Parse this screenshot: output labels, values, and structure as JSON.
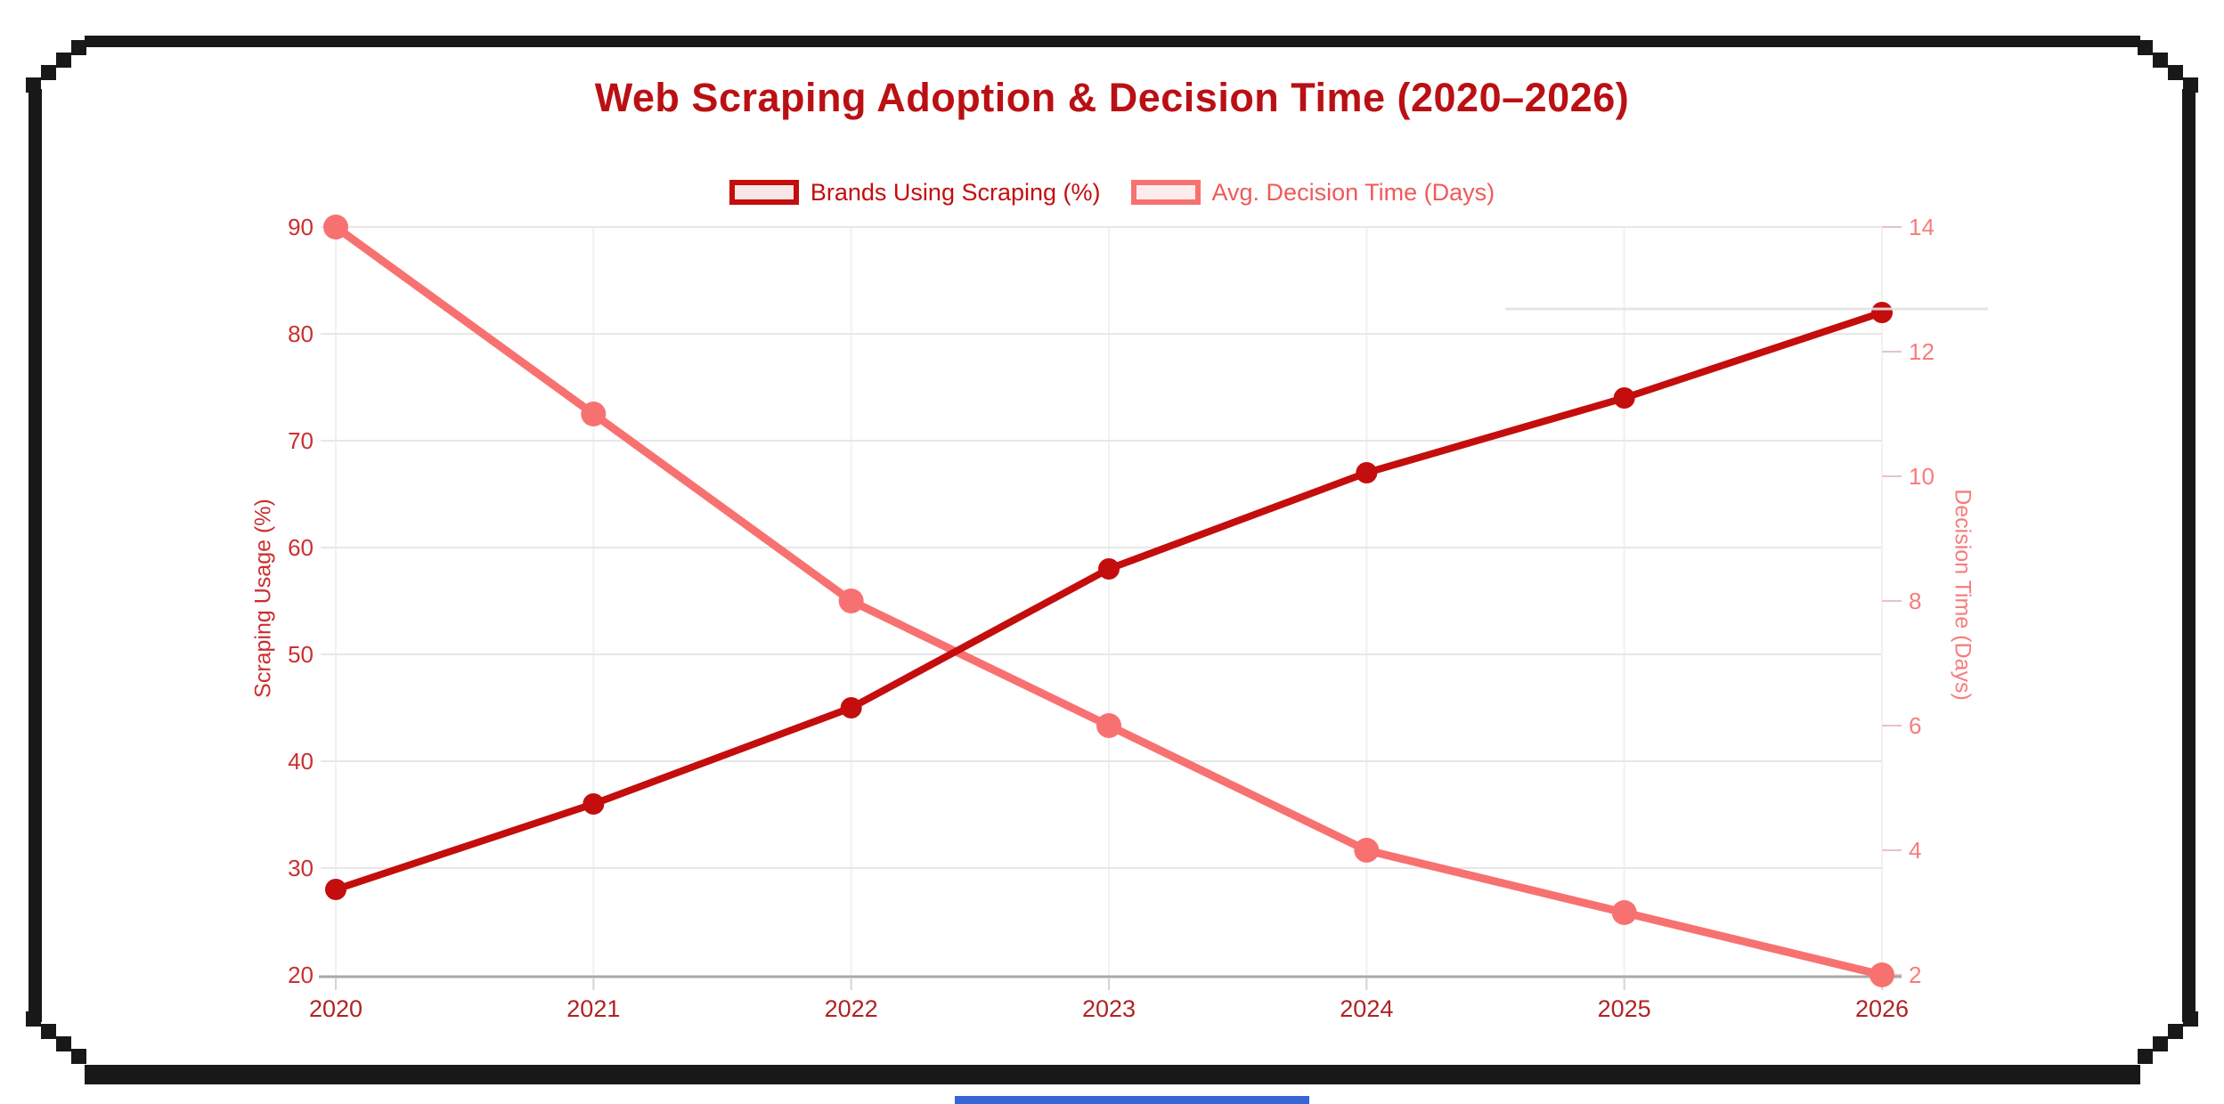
{
  "title": "Web Scraping Adoption & Decision Time (2020–2026)",
  "chart_data": {
    "type": "line",
    "title": "Web Scraping Adoption & Decision Time (2020–2026)",
    "categories": [
      "2020",
      "2021",
      "2022",
      "2023",
      "2024",
      "2025",
      "2026"
    ],
    "series": [
      {
        "name": "Brands Using Scraping (%)",
        "axis": "left",
        "color": "#c40d0d",
        "values": [
          28,
          36,
          45,
          58,
          67,
          74,
          82
        ]
      },
      {
        "name": "Avg. Decision Time (Days)",
        "axis": "right",
        "color": "#f87171",
        "values": [
          14,
          11,
          8,
          6,
          4,
          3,
          2
        ]
      }
    ],
    "left_axis": {
      "label": "Scraping Usage (%)",
      "min": 20,
      "max": 90,
      "ticks": [
        90,
        80,
        70,
        60,
        50,
        40,
        30,
        20
      ],
      "tick_color": "#cb2f2f"
    },
    "right_axis": {
      "label": "Decision Time (Days)",
      "min": 2,
      "max": 14,
      "ticks": [
        14,
        12,
        10,
        8,
        6,
        4,
        2
      ],
      "tick_color": "#f87c7c"
    },
    "x_axis": {
      "tick_color": "#b22222"
    },
    "legend_position": "top",
    "grid": true
  },
  "colors": {
    "title": "#ba1014",
    "frame": "#181818",
    "bottom_bar": "#3566d6",
    "gridline_h": "#e7e7e7",
    "gridline_v": "#f1f1f1",
    "axis_baseline": "#a8a8a8"
  }
}
